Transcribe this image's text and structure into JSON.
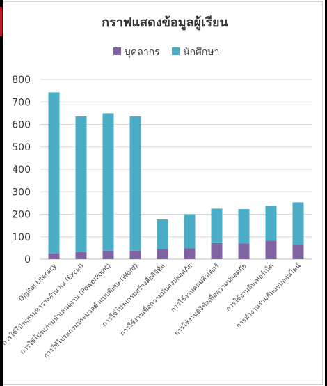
{
  "chart_data": {
    "type": "bar",
    "stacked": true,
    "title": "กราฟแสดงข้อมูลผู้เรียน",
    "categories": [
      "Digital Literacy",
      "การใช้โปรแกรมตารางคำนวณ (Excel)",
      "การใช้โปรแกรมนำเสนองาน (PowerPoint)",
      "การใช้โปรแกรมประมวลคำแบบพิเศษ (Word)",
      "การใช้โปรแกรมสร้างสื่อดิจิทัล",
      "การใช้งานเพื่อความมั่นคงปลอดภัย",
      "การใช้งานคอมพิวเตอร์",
      "การใช้งานดิจิทัลเพื่อความปลอดภัย",
      "การใช้งานอินเทอร์เน็ต",
      "การทำงานร่วมกันแบบออนไลน์"
    ],
    "series": [
      {
        "name": "บุคลากร",
        "color": "#8064a2",
        "values": [
          25,
          32,
          38,
          38,
          45,
          48,
          72,
          70,
          82,
          65
        ]
      },
      {
        "name": "นักศึกษา",
        "color": "#4bacc6",
        "values": [
          718,
          604,
          612,
          598,
          132,
          152,
          153,
          153,
          155,
          188
        ]
      }
    ],
    "ylim": [
      0,
      800
    ],
    "yticks": [
      0,
      100,
      200,
      300,
      400,
      500,
      600,
      700,
      800
    ],
    "grid": true,
    "legend": "top"
  }
}
